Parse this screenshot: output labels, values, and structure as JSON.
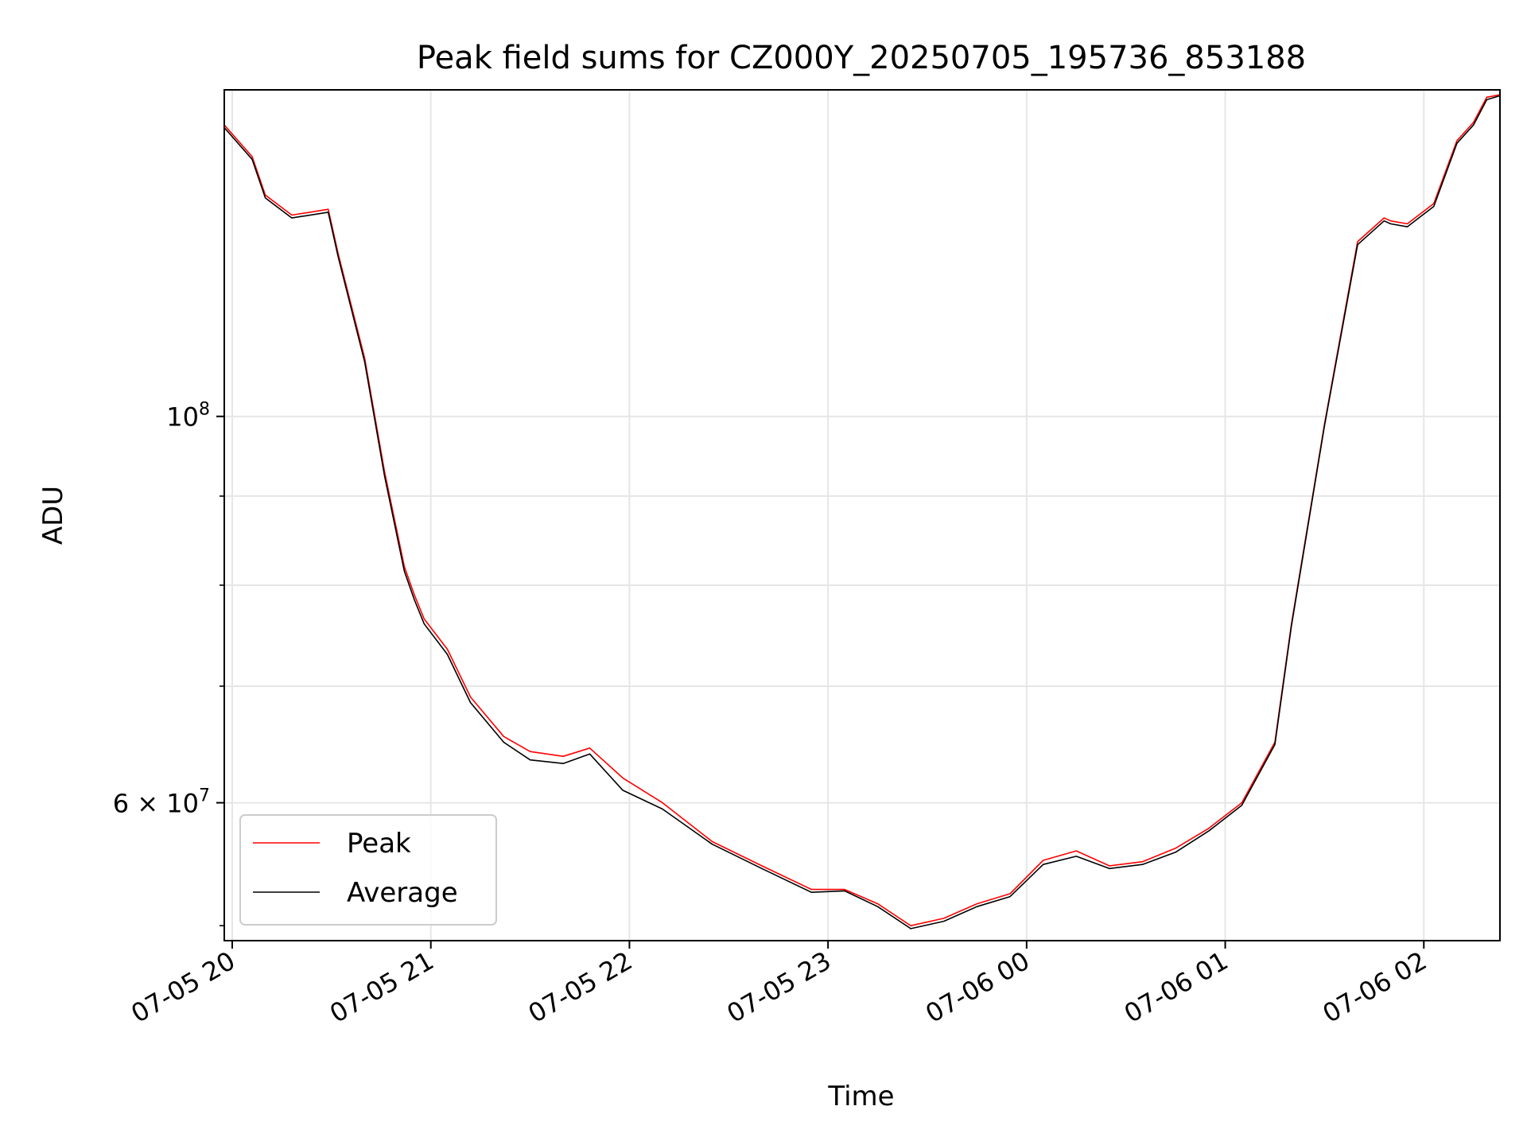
{
  "chart_data": {
    "type": "line",
    "title": "Peak field sums for CZ000Y_20250705_195736_853188",
    "xlabel": "Time",
    "ylabel": "ADU",
    "yscale": "log",
    "ylim": [
      50000000,
      154000000
    ],
    "xlim": [
      "2025-07-05 19:57:36",
      "2025-07-06 02:23:00"
    ],
    "grid": true,
    "legend_position": "lower-left",
    "x_ticks": [
      {
        "at": "2025-07-05 20:00",
        "label": "07-05 20"
      },
      {
        "at": "2025-07-05 21:00",
        "label": "07-05 21"
      },
      {
        "at": "2025-07-05 22:00",
        "label": "07-05 22"
      },
      {
        "at": "2025-07-05 23:00",
        "label": "07-05 23"
      },
      {
        "at": "2025-07-06 00:00",
        "label": "07-06 00"
      },
      {
        "at": "2025-07-06 01:00",
        "label": "07-06 01"
      },
      {
        "at": "2025-07-06 02:00",
        "label": "07-06 02"
      }
    ],
    "y_major_ticks": [
      {
        "value": 100000000,
        "base": "10",
        "exp": "8",
        "coef": ""
      },
      {
        "value": 60000000,
        "base": "10",
        "exp": "7",
        "coef": "6"
      }
    ],
    "y_minor_ticks": [
      70000000,
      80000000,
      90000000
    ],
    "series": [
      {
        "name": "Peak",
        "color": "#ff0000",
        "x": [
          "2025-07-05 19:57",
          "2025-07-05 20:06",
          "2025-07-05 20:10",
          "2025-07-05 20:18",
          "2025-07-05 20:29",
          "2025-07-05 20:32",
          "2025-07-05 20:40",
          "2025-07-05 20:46",
          "2025-07-05 20:52",
          "2025-07-05 20:55",
          "2025-07-05 20:58",
          "2025-07-05 21:05",
          "2025-07-05 21:12",
          "2025-07-05 21:22",
          "2025-07-05 21:30",
          "2025-07-05 21:40",
          "2025-07-05 21:48",
          "2025-07-05 21:58",
          "2025-07-05 22:10",
          "2025-07-05 22:25",
          "2025-07-05 22:40",
          "2025-07-05 22:55",
          "2025-07-05 23:05",
          "2025-07-05 23:15",
          "2025-07-05 23:25",
          "2025-07-05 23:35",
          "2025-07-05 23:45",
          "2025-07-05 23:55",
          "2025-07-06 00:05",
          "2025-07-06 00:15",
          "2025-07-06 00:25",
          "2025-07-06 00:35",
          "2025-07-06 00:45",
          "2025-07-06 00:55",
          "2025-07-06 01:05",
          "2025-07-06 01:15",
          "2025-07-06 01:20",
          "2025-07-06 01:30",
          "2025-07-06 01:40",
          "2025-07-06 01:48",
          "2025-07-06 01:50",
          "2025-07-06 01:55",
          "2025-07-06 02:03",
          "2025-07-06 02:10",
          "2025-07-06 02:15",
          "2025-07-06 02:19",
          "2025-07-06 02:23"
        ],
        "y": [
          147000000,
          141000000,
          134000000,
          130500000,
          131500000,
          124000000,
          108000000,
          93000000,
          82000000,
          79000000,
          76500000,
          73500000,
          69000000,
          65500000,
          64200000,
          63800000,
          64500000,
          62000000,
          60000000,
          57000000,
          55200000,
          53500000,
          53500000,
          52500000,
          51000000,
          51500000,
          52500000,
          53200000,
          55600000,
          56300000,
          55200000,
          55500000,
          56500000,
          58000000,
          60000000,
          65000000,
          76000000,
          99000000,
          126000000,
          130000000,
          129500000,
          129000000,
          132500000,
          144000000,
          147500000,
          152500000,
          153000000
        ]
      },
      {
        "name": "Average",
        "color": "#000000",
        "x": [
          "2025-07-05 19:57",
          "2025-07-05 20:06",
          "2025-07-05 20:10",
          "2025-07-05 20:18",
          "2025-07-05 20:29",
          "2025-07-05 20:32",
          "2025-07-05 20:40",
          "2025-07-05 20:46",
          "2025-07-05 20:52",
          "2025-07-05 20:55",
          "2025-07-05 20:58",
          "2025-07-05 21:05",
          "2025-07-05 21:12",
          "2025-07-05 21:22",
          "2025-07-05 21:30",
          "2025-07-05 21:40",
          "2025-07-05 21:48",
          "2025-07-05 21:58",
          "2025-07-05 22:10",
          "2025-07-05 22:25",
          "2025-07-05 22:40",
          "2025-07-05 22:55",
          "2025-07-05 23:05",
          "2025-07-05 23:15",
          "2025-07-05 23:25",
          "2025-07-05 23:35",
          "2025-07-05 23:45",
          "2025-07-05 23:55",
          "2025-07-06 00:05",
          "2025-07-06 00:15",
          "2025-07-06 00:25",
          "2025-07-06 00:35",
          "2025-07-06 00:45",
          "2025-07-06 00:55",
          "2025-07-06 01:05",
          "2025-07-06 01:15",
          "2025-07-06 01:20",
          "2025-07-06 01:30",
          "2025-07-06 01:40",
          "2025-07-06 01:48",
          "2025-07-06 01:50",
          "2025-07-06 01:55",
          "2025-07-06 02:03",
          "2025-07-06 02:10",
          "2025-07-06 02:15",
          "2025-07-06 02:19",
          "2025-07-06 02:23"
        ],
        "y": [
          146500000,
          140500000,
          133500000,
          130000000,
          131000000,
          123500000,
          107500000,
          92500000,
          81500000,
          78500000,
          76000000,
          73000000,
          68500000,
          65000000,
          63500000,
          63200000,
          64000000,
          61000000,
          59500000,
          56800000,
          55000000,
          53300000,
          53400000,
          52300000,
          50800000,
          51300000,
          52300000,
          53000000,
          55300000,
          55900000,
          55000000,
          55300000,
          56200000,
          57800000,
          59800000,
          64800000,
          75800000,
          98800000,
          125500000,
          129500000,
          129000000,
          128500000,
          132000000,
          143500000,
          147000000,
          152000000,
          152800000
        ]
      }
    ]
  }
}
